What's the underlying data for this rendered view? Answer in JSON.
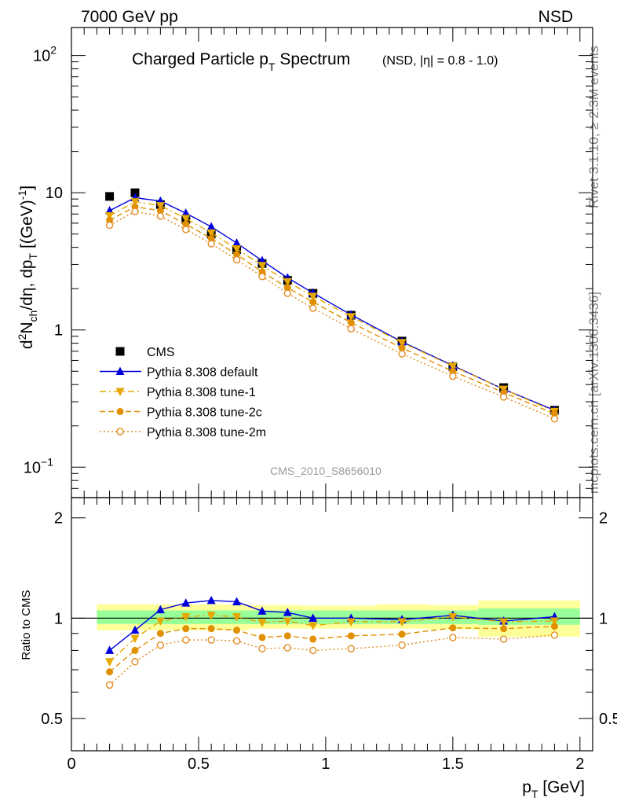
{
  "header": {
    "left": "7000 GeV pp",
    "right": "NSD"
  },
  "side": {
    "top": "Rivet 3.1.10, ≥ 2.3M events",
    "bottom": "mcplots.cern.ch [arXiv:1306.3436]"
  },
  "analysis_id": "CMS_2010_S8656010",
  "title": {
    "main": "Charged Particle p",
    "sub": "T",
    "tail": " Spectrum",
    "extra": "(NSD, |η| = 0.8 - 1.0)"
  },
  "chart_data": [
    {
      "type": "scatter",
      "panel": "main",
      "ylabel": "d²N_ch/dη, dp_T [(GeV)⁻¹]",
      "xlim": [
        0,
        2.05
      ],
      "ylim": [
        0.06,
        160
      ],
      "yscale": "log",
      "yticks": [
        {
          "v": 0.1,
          "t": "10",
          "e": "−1"
        },
        {
          "v": 1,
          "t": "1",
          "e": ""
        },
        {
          "v": 10,
          "t": "10",
          "e": ""
        },
        {
          "v": 100,
          "t": "10",
          "e": "2"
        }
      ],
      "x": [
        0.15,
        0.25,
        0.35,
        0.45,
        0.55,
        0.65,
        0.75,
        0.85,
        0.95,
        1.1,
        1.3,
        1.5,
        1.7,
        1.9
      ],
      "legend": "left",
      "series": [
        {
          "name": "CMS",
          "color": "#000000",
          "marker": "square",
          "line": "none",
          "values": [
            9.4,
            10.0,
            8.2,
            6.4,
            5.0,
            3.85,
            3.05,
            2.3,
            1.85,
            1.28,
            0.83,
            0.54,
            0.38,
            0.26
          ]
        },
        {
          "name": "Pythia 8.308 default",
          "color": "#0000dd",
          "marker": "triangle-up",
          "line": "solid",
          "values": [
            7.4,
            9.2,
            8.7,
            7.1,
            5.65,
            4.3,
            3.2,
            2.4,
            1.86,
            1.29,
            0.82,
            0.55,
            0.37,
            0.26
          ]
        },
        {
          "name": "Pythia 8.308 tune-1",
          "color": "#e6a800",
          "marker": "triangle-down",
          "line": "dashdot",
          "values": [
            6.8,
            8.6,
            8.05,
            6.5,
            5.1,
            3.9,
            2.95,
            2.25,
            1.76,
            1.25,
            0.81,
            0.545,
            0.37,
            0.255
          ]
        },
        {
          "name": "Pythia 8.308 tune-2c",
          "color": "#e09000",
          "marker": "circle",
          "line": "dashed",
          "values": [
            6.3,
            7.9,
            7.4,
            5.9,
            4.65,
            3.55,
            2.65,
            2.03,
            1.6,
            1.13,
            0.74,
            0.5,
            0.35,
            0.245
          ]
        },
        {
          "name": "Pythia 8.308 tune-2m",
          "color": "#e08c20",
          "marker": "open-circle",
          "line": "dotted",
          "values": [
            5.8,
            7.3,
            6.75,
            5.4,
            4.25,
            3.25,
            2.45,
            1.85,
            1.44,
            1.02,
            0.67,
            0.46,
            0.325,
            0.225
          ]
        }
      ]
    },
    {
      "type": "line",
      "panel": "ratio",
      "ylabel": "Ratio to CMS",
      "xlabel": "p_T [GeV]",
      "xlim": [
        0,
        2.05
      ],
      "ylim": [
        0.4,
        2.3
      ],
      "yscale": "log",
      "yticks": [
        {
          "v": 0.5,
          "t": "0.5"
        },
        {
          "v": 1,
          "t": "1"
        },
        {
          "v": 2,
          "t": "2"
        }
      ],
      "xticks": [
        {
          "v": 0,
          "t": "0"
        },
        {
          "v": 0.5,
          "t": "0.5"
        },
        {
          "v": 1,
          "t": "1"
        },
        {
          "v": 1.5,
          "t": "1.5"
        },
        {
          "v": 2,
          "t": "2"
        }
      ],
      "x": [
        0.15,
        0.25,
        0.35,
        0.45,
        0.55,
        0.65,
        0.75,
        0.85,
        0.95,
        1.1,
        1.3,
        1.5,
        1.7,
        1.9
      ],
      "bands": [
        {
          "color": "#ffff99",
          "segments": [
            [
              0.1,
              0.7,
              0.92,
              1.1
            ],
            [
              0.7,
              0.9,
              0.93,
              1.095
            ],
            [
              0.9,
              1.2,
              0.93,
              1.09
            ],
            [
              1.2,
              1.4,
              0.93,
              1.1
            ],
            [
              1.4,
              1.6,
              0.925,
              1.095
            ],
            [
              1.6,
              2.0,
              0.88,
              1.13
            ]
          ]
        },
        {
          "color": "#99ff99",
          "segments": [
            [
              0.1,
              1.6,
              0.96,
              1.055
            ],
            [
              1.6,
              2.0,
              0.955,
              1.07
            ]
          ]
        }
      ],
      "series": [
        {
          "name": "Pythia 8.308 default",
          "values": [
            0.8,
            0.92,
            1.06,
            1.11,
            1.13,
            1.12,
            1.05,
            1.04,
            1.0,
            1.0,
            0.99,
            1.02,
            0.98,
            1.01
          ]
        },
        {
          "name": "Pythia 8.308 tune-1",
          "values": [
            0.74,
            0.87,
            0.98,
            1.01,
            1.02,
            1.01,
            0.97,
            0.98,
            0.95,
            0.975,
            0.975,
            1.01,
            0.975,
            0.98
          ]
        },
        {
          "name": "Pythia 8.308 tune-2c",
          "values": [
            0.69,
            0.8,
            0.9,
            0.93,
            0.93,
            0.92,
            0.875,
            0.885,
            0.865,
            0.885,
            0.895,
            0.935,
            0.93,
            0.945
          ]
        },
        {
          "name": "Pythia 8.308 tune-2m",
          "values": [
            0.63,
            0.74,
            0.83,
            0.86,
            0.86,
            0.855,
            0.81,
            0.815,
            0.8,
            0.81,
            0.83,
            0.875,
            0.865,
            0.89
          ]
        }
      ]
    }
  ]
}
